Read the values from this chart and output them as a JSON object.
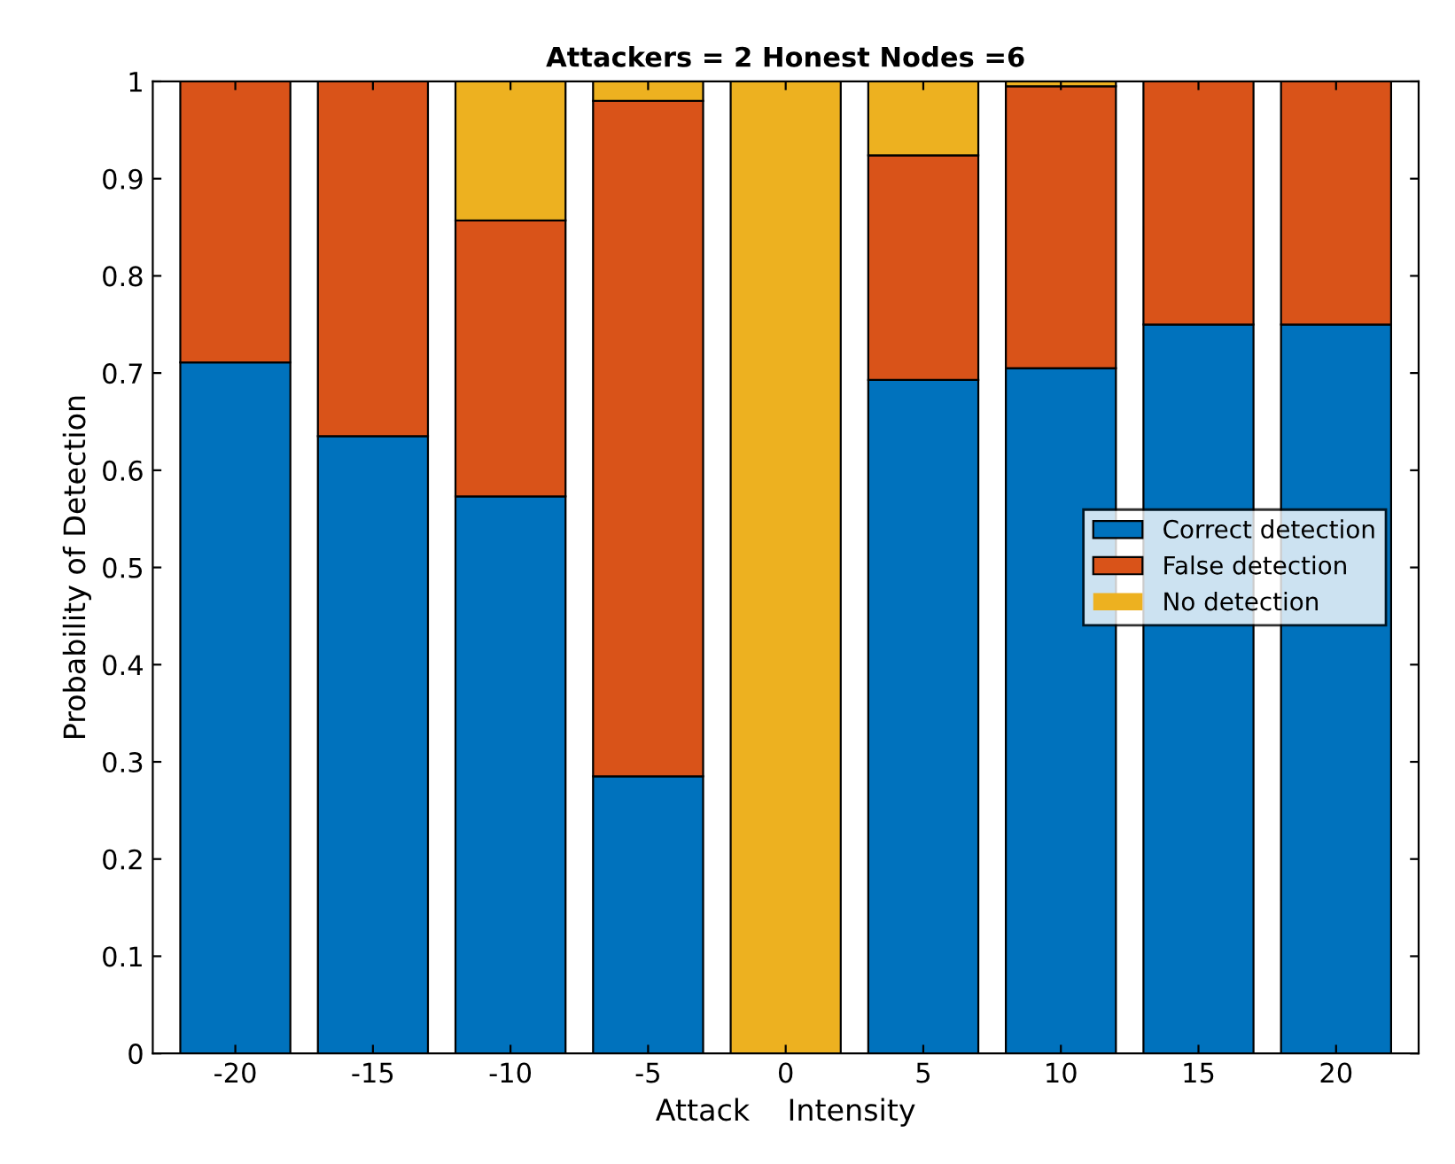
{
  "chart_data": {
    "type": "bar",
    "title": "Attackers = 2 Honest Nodes =6",
    "xlabel": "Attack    Intensity",
    "ylabel": "Probability of Detection",
    "categories": [
      "-20",
      "-15",
      "-10",
      "-5",
      "0",
      "5",
      "10",
      "15",
      "20"
    ],
    "stacked": true,
    "series": [
      {
        "name": "Correct detection",
        "color": "#0072bd",
        "values": [
          0.711,
          0.635,
          0.573,
          0.285,
          0,
          0.693,
          0.705,
          0.75,
          0.75
        ]
      },
      {
        "name": "False detection",
        "color": "#d95319",
        "values": [
          0.289,
          0.365,
          0.284,
          0.695,
          0,
          0.231,
          0.29,
          0.25,
          0.25
        ]
      },
      {
        "name": "No detection",
        "color": "#edb120",
        "values": [
          0,
          0,
          0.143,
          0.02,
          1,
          0.076,
          0.005,
          0,
          0
        ]
      }
    ],
    "ylim": [
      0,
      1
    ],
    "yticks": [
      0,
      0.1,
      0.2,
      0.3,
      0.4,
      0.5,
      0.6,
      0.7,
      0.8,
      0.9,
      1
    ],
    "grid": false,
    "legend": "right"
  }
}
